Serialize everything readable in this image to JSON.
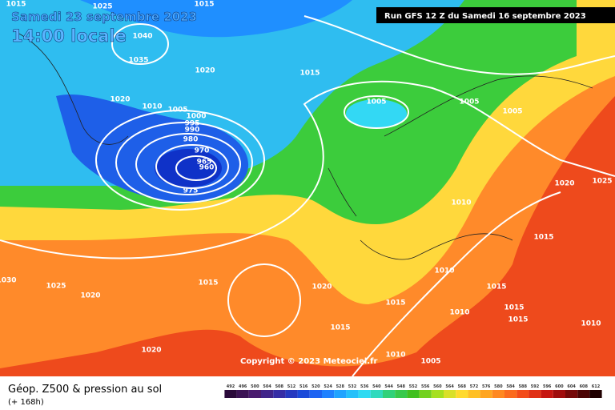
{
  "header": {
    "date": "Samedi 23 septembre 2023",
    "time": "14:00 locale",
    "run": "Run GFS 12 Z du Samedi 16 septembre 2023"
  },
  "copyright": "Copyright © 2023 Meteociel.fr",
  "legend": {
    "title": "Géop. Z500 & pression au sol",
    "lead": "(+ 168h)",
    "scale": [
      492,
      496,
      500,
      504,
      508,
      512,
      516,
      520,
      524,
      528,
      532,
      536,
      540,
      544,
      548,
      552,
      556,
      560,
      564,
      568,
      572,
      576,
      580,
      584,
      588,
      592,
      596,
      600,
      604,
      608,
      612
    ]
  },
  "isobar_labels": [
    1015,
    1025,
    1015,
    1040,
    1035,
    1020,
    1015,
    1020,
    1010,
    1005,
    1000,
    995,
    990,
    980,
    970,
    965,
    960,
    975,
    1005,
    1005,
    1005,
    1020,
    1025,
    1010,
    1015,
    1010,
    1015,
    1030,
    1025,
    1020,
    1015,
    1020,
    1015,
    1010,
    1015,
    1015,
    1010,
    1015,
    1020,
    1010,
    1005
  ]
}
